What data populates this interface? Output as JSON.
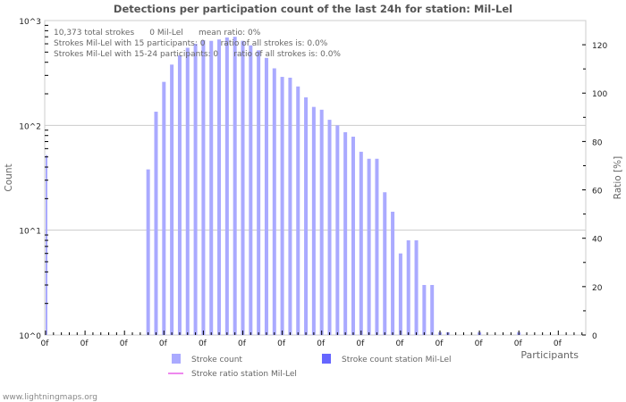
{
  "chart_data": {
    "type": "bar",
    "title": "Detections per participation count of the last 24h for station: Mil-Lel",
    "xlabel": "Participants",
    "ylabel": "Count",
    "y2label": "Ratio [%]",
    "yscale": "log",
    "ylim": [
      1,
      1000
    ],
    "y_ticks": [
      "10^0",
      "10^1",
      "10^2",
      "10^3"
    ],
    "y2lim": [
      0,
      130
    ],
    "y2_ticks": [
      "0",
      "20",
      "40",
      "60",
      "80",
      "100",
      "120"
    ],
    "x_tick_labels": [
      "0f",
      "0f",
      "0f",
      "0f",
      "0f",
      "0f",
      "0f",
      "0f",
      "0f",
      "0f",
      "0f",
      "0f",
      "0f",
      "0f"
    ],
    "x_range": [
      0,
      68
    ],
    "grid": true,
    "series": [
      {
        "name": "Stroke count",
        "color": "#aaaaff",
        "points": [
          [
            0,
            52
          ],
          [
            13,
            38
          ],
          [
            14,
            135
          ],
          [
            15,
            260
          ],
          [
            16,
            380
          ],
          [
            17,
            465
          ],
          [
            18,
            550
          ],
          [
            19,
            600
          ],
          [
            20,
            650
          ],
          [
            21,
            640
          ],
          [
            22,
            660
          ],
          [
            23,
            690
          ],
          [
            24,
            700
          ],
          [
            25,
            640
          ],
          [
            26,
            580
          ],
          [
            27,
            520
          ],
          [
            28,
            440
          ],
          [
            29,
            350
          ],
          [
            30,
            290
          ],
          [
            31,
            285
          ],
          [
            32,
            235
          ],
          [
            33,
            185
          ],
          [
            34,
            150
          ],
          [
            35,
            141
          ],
          [
            36,
            113
          ],
          [
            37,
            100
          ],
          [
            38,
            86
          ],
          [
            39,
            78
          ],
          [
            40,
            56
          ],
          [
            41,
            48
          ],
          [
            42,
            48
          ],
          [
            43,
            23
          ],
          [
            44,
            15
          ],
          [
            45,
            6
          ],
          [
            46,
            8
          ],
          [
            47,
            8
          ],
          [
            48,
            3
          ],
          [
            49,
            3
          ],
          [
            50,
            1.06
          ],
          [
            51,
            1.06
          ],
          [
            55,
            1.06
          ],
          [
            60,
            1.06
          ]
        ]
      },
      {
        "name": "Stroke count station Mil-Lel",
        "color": "#6666ff",
        "points": []
      },
      {
        "name": "Stroke ratio station Mil-Lel",
        "color": "#ee88ee",
        "points": []
      }
    ],
    "annotations": [
      "10,373 total strokes      0 Mil-Lel      mean ratio: 0%",
      "Strokes Mil-Lel with 15 participants: 0      ratio of all strokes is: 0.0%",
      "Strokes Mil-Lel with 15-24 participants: 0      ratio of all strokes is: 0.0%"
    ],
    "legend_position": "bottom"
  },
  "footer": "www.lightningmaps.org"
}
